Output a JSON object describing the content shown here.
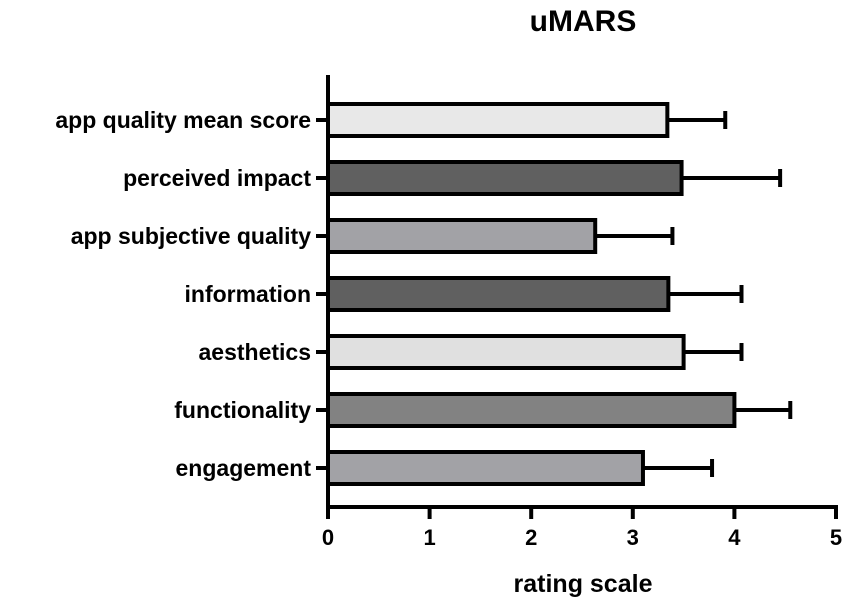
{
  "chart_data": {
    "type": "bar",
    "orientation": "horizontal",
    "title": "uMARS",
    "xlabel": "rating scale",
    "ylabel": "",
    "xlim": [
      0,
      5
    ],
    "xticks": [
      "0",
      "1",
      "2",
      "3",
      "4",
      "5"
    ],
    "grid": false,
    "categories": [
      "app quality mean score",
      "perceived impact",
      "app subjective quality",
      "information",
      "aesthetics",
      "functionality",
      "engagement"
    ],
    "values": [
      3.34,
      3.48,
      2.63,
      3.35,
      3.5,
      4.0,
      3.1
    ],
    "errors": [
      0.57,
      0.97,
      0.76,
      0.72,
      0.57,
      0.55,
      0.68
    ],
    "colors": [
      "#e8e8e8",
      "#606060",
      "#a2a2a6",
      "#606060",
      "#e0e0e0",
      "#828282",
      "#a2a2a6"
    ]
  }
}
